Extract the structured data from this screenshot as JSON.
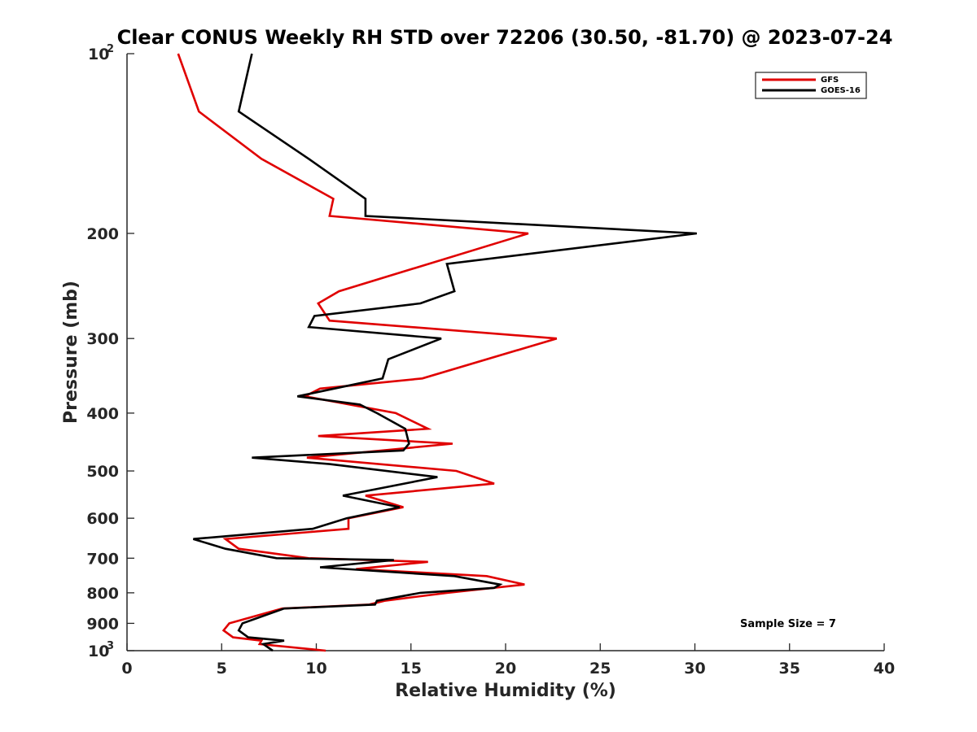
{
  "chart_data": {
    "type": "line",
    "title": "Clear CONUS Weekly RH STD over 72206 (30.50, -81.70) @ 2023-07-24",
    "xlabel": "Relative Humidity (%)",
    "ylabel": "Pressure (mb)",
    "xlim": [
      0,
      40
    ],
    "ylim": [
      100,
      1000
    ],
    "y_scale": "log",
    "y_reversed": true,
    "grid": false,
    "legend_position": "top-right",
    "x_ticks": [
      {
        "value": 0,
        "label": "0"
      },
      {
        "value": 5,
        "label": "5"
      },
      {
        "value": 10,
        "label": "10"
      },
      {
        "value": 15,
        "label": "15"
      },
      {
        "value": 20,
        "label": "20"
      },
      {
        "value": 25,
        "label": "25"
      },
      {
        "value": 30,
        "label": "30"
      },
      {
        "value": 35,
        "label": "35"
      },
      {
        "value": 40,
        "label": "40"
      }
    ],
    "y_ticks": [
      {
        "value": 100,
        "base": "10",
        "exp": "2"
      },
      {
        "value": 200,
        "label": "200"
      },
      {
        "value": 300,
        "label": "300"
      },
      {
        "value": 400,
        "label": "400"
      },
      {
        "value": 500,
        "label": "500"
      },
      {
        "value": 600,
        "label": "600"
      },
      {
        "value": 700,
        "label": "700"
      },
      {
        "value": 800,
        "label": "800"
      },
      {
        "value": 900,
        "label": "900"
      },
      {
        "value": 1000,
        "base": "10",
        "exp": "3"
      }
    ],
    "series": [
      {
        "name": "GFS",
        "color": "#e00000",
        "points": [
          [
            2.7,
            100
          ],
          [
            3.8,
            125
          ],
          [
            7.1,
            150
          ],
          [
            10.9,
            175
          ],
          [
            10.7,
            187
          ],
          [
            21.2,
            200
          ],
          [
            11.2,
            250
          ],
          [
            10.1,
            262
          ],
          [
            10.7,
            280
          ],
          [
            22.7,
            300
          ],
          [
            15.6,
            350
          ],
          [
            10.2,
            364
          ],
          [
            9.4,
            375
          ],
          [
            14.2,
            400
          ],
          [
            15.9,
            425
          ],
          [
            10.1,
            437
          ],
          [
            17.2,
            450
          ],
          [
            9.5,
            475
          ],
          [
            17.4,
            500
          ],
          [
            19.4,
            525
          ],
          [
            12.6,
            550
          ],
          [
            14.6,
            575
          ],
          [
            11.7,
            600
          ],
          [
            11.7,
            625
          ],
          [
            5.2,
            650
          ],
          [
            5.9,
            675
          ],
          [
            9.6,
            700
          ],
          [
            15.9,
            710
          ],
          [
            12.1,
            730
          ],
          [
            19.0,
            750
          ],
          [
            21.0,
            775
          ],
          [
            16.9,
            800
          ],
          [
            13.6,
            825
          ],
          [
            12.8,
            837
          ],
          [
            8.2,
            850
          ],
          [
            5.4,
            900
          ],
          [
            5.1,
            925
          ],
          [
            5.6,
            950
          ],
          [
            7.1,
            962
          ],
          [
            7.0,
            975
          ],
          [
            10.5,
            1000
          ]
        ]
      },
      {
        "name": "GOES-16",
        "color": "#000000",
        "points": [
          [
            6.6,
            100
          ],
          [
            5.9,
            125
          ],
          [
            9.6,
            150
          ],
          [
            12.6,
            175
          ],
          [
            12.6,
            187
          ],
          [
            30.1,
            200
          ],
          [
            16.9,
            225
          ],
          [
            17.3,
            250
          ],
          [
            15.5,
            262
          ],
          [
            9.9,
            275
          ],
          [
            9.6,
            287
          ],
          [
            16.6,
            300
          ],
          [
            13.8,
            325
          ],
          [
            13.5,
            350
          ],
          [
            9.0,
            375
          ],
          [
            12.3,
            387
          ],
          [
            13.2,
            400
          ],
          [
            14.7,
            425
          ],
          [
            14.9,
            450
          ],
          [
            14.6,
            462
          ],
          [
            6.6,
            475
          ],
          [
            10.7,
            487
          ],
          [
            16.4,
            512
          ],
          [
            11.4,
            550
          ],
          [
            14.4,
            575
          ],
          [
            11.6,
            600
          ],
          [
            9.8,
            625
          ],
          [
            3.5,
            650
          ],
          [
            5.2,
            675
          ],
          [
            7.9,
            700
          ],
          [
            14.1,
            705
          ],
          [
            10.2,
            725
          ],
          [
            17.3,
            750
          ],
          [
            19.7,
            775
          ],
          [
            19.4,
            785
          ],
          [
            15.5,
            800
          ],
          [
            13.2,
            825
          ],
          [
            13.1,
            837
          ],
          [
            8.3,
            850
          ],
          [
            6.1,
            900
          ],
          [
            5.9,
            925
          ],
          [
            6.4,
            950
          ],
          [
            8.3,
            962
          ],
          [
            7.2,
            975
          ],
          [
            7.7,
            1000
          ]
        ]
      }
    ],
    "annotation": "Sample Size = 7"
  }
}
